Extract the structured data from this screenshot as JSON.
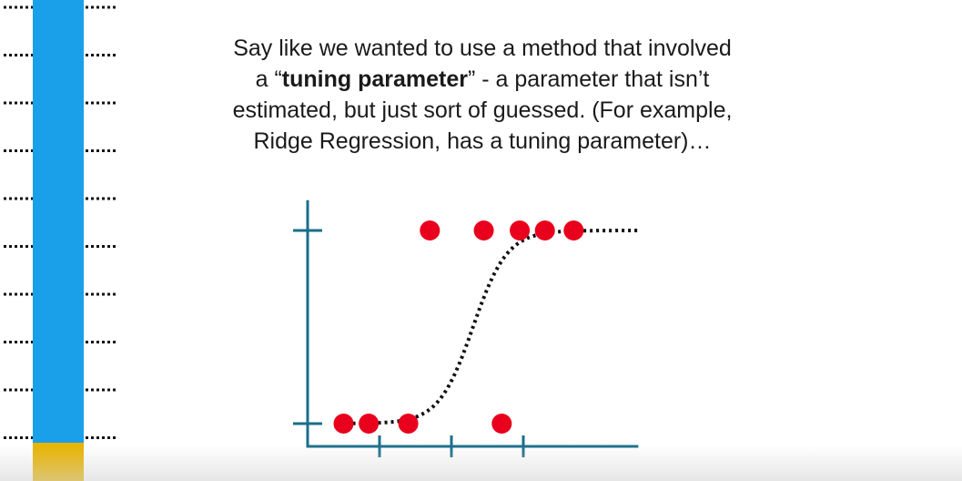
{
  "caption": {
    "line1": "Say like we wanted to use a method that involved",
    "line2_pre": "a “",
    "line2_bold": "tuning parameter",
    "line2_post": "” - a parameter that isn’t",
    "line3": "estimated, but just sort of guessed. (For example,",
    "line4": "Ridge Regression, has a tuning parameter)…"
  },
  "colors": {
    "axis": "#1a6e8a",
    "point": "#e8001c",
    "curve": "#111111",
    "bar_blue": "#1aa0e8",
    "bar_gold": "#e8b400",
    "dots": "#111111"
  },
  "chart_data": {
    "type": "scatter",
    "title": "",
    "xlabel": "",
    "ylabel": "",
    "xlim": [
      0,
      4.6
    ],
    "ylim": [
      0,
      1.1
    ],
    "x_ticks": [
      1,
      2,
      3
    ],
    "y_ticks": [
      0,
      1
    ],
    "series": [
      {
        "points": [
          {
            "x": 0.5,
            "y": 0
          },
          {
            "x": 0.85,
            "y": 0
          },
          {
            "x": 1.4,
            "y": 0
          },
          {
            "x": 2.7,
            "y": 0
          },
          {
            "x": 1.7,
            "y": 1
          },
          {
            "x": 2.45,
            "y": 1
          },
          {
            "x": 2.95,
            "y": 1
          },
          {
            "x": 3.3,
            "y": 1
          },
          {
            "x": 3.7,
            "y": 1
          }
        ]
      }
    ],
    "curve": {
      "style": "dotted",
      "shape": "logistic",
      "midpoint": 2.3,
      "steepness": 4.2
    }
  },
  "side_strip": {
    "blue_fraction": 0.92,
    "dotted_rows": 10
  }
}
